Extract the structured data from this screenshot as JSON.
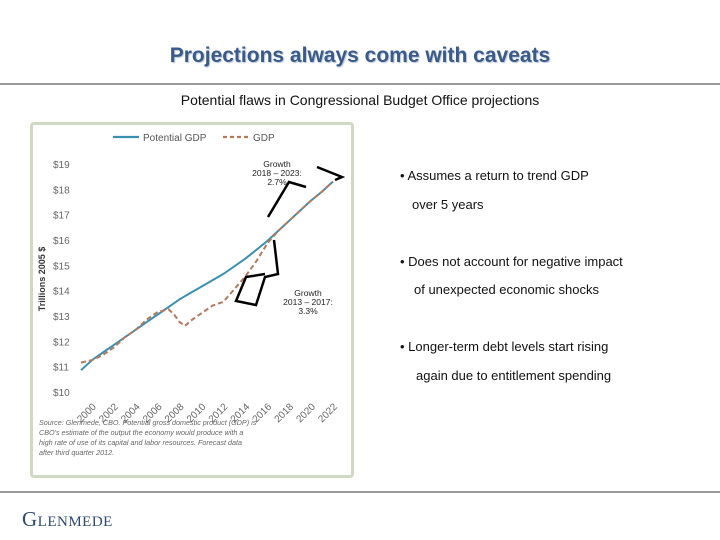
{
  "slide": {
    "title": "Projections always come with caveats",
    "subtitle": "Potential flaws in Congressional Budget Office projections"
  },
  "bullets": [
    {
      "line1": "• Assumes a return to trend GDP",
      "line2": "over 5 years"
    },
    {
      "line1": "• Does not account for negative impact",
      "line2": "of unexpected economic shocks"
    },
    {
      "line1": "• Longer-term debt levels start rising",
      "line2": "again due to entitlement spending"
    }
  ],
  "footer": {
    "logo": "Glenmede"
  },
  "chart_data": {
    "type": "line",
    "ylabel": "Trillions 2005 $",
    "xlabel": "",
    "ylim": [
      10,
      19
    ],
    "xlim": [
      2000,
      2023
    ],
    "x_ticks": [
      "2000",
      "2002",
      "2004",
      "2006",
      "2008",
      "2010",
      "2012",
      "2014",
      "2016",
      "2018",
      "2020",
      "2022"
    ],
    "y_ticks": [
      "$10",
      "$11",
      "$12",
      "$13",
      "$14",
      "$15",
      "$16",
      "$17",
      "$18",
      "$19"
    ],
    "series": [
      {
        "name": "Potential GDP",
        "color": "#3b8fb0",
        "style": "solid",
        "x": [
          2000,
          2001,
          2002,
          2003,
          2004,
          2005,
          2006,
          2007,
          2008,
          2009,
          2010,
          2011,
          2012,
          2013,
          2014,
          2015,
          2016,
          2017,
          2018,
          2019,
          2020,
          2021,
          2022,
          2023
        ],
        "values": [
          10.9,
          11.3,
          11.6,
          11.9,
          12.2,
          12.5,
          12.8,
          13.1,
          13.4,
          13.7,
          13.95,
          14.2,
          14.45,
          14.7,
          15.0,
          15.3,
          15.65,
          16.0,
          16.4,
          16.8,
          17.2,
          17.6,
          17.95,
          18.35
        ]
      },
      {
        "name": "GDP",
        "color": "#b5785a",
        "style": "dashed",
        "x": [
          2000,
          2001,
          2002,
          2003,
          2004,
          2005,
          2006,
          2007,
          2008,
          2008.5,
          2009,
          2009.5,
          2010,
          2011,
          2012,
          2013,
          2014,
          2015,
          2016,
          2017,
          2018,
          2019,
          2020,
          2021,
          2022,
          2023
        ],
        "values": [
          11.2,
          11.3,
          11.5,
          11.8,
          12.2,
          12.5,
          12.9,
          13.2,
          13.3,
          13.1,
          12.8,
          12.65,
          12.85,
          13.15,
          13.45,
          13.6,
          14.1,
          14.6,
          15.2,
          15.9,
          16.4,
          16.8,
          17.2,
          17.6,
          17.95,
          18.35
        ]
      }
    ],
    "annotations": [
      {
        "text": [
          "Growth",
          "2018 – 2023:",
          "2.7%"
        ]
      },
      {
        "text": [
          "Growth",
          "2013 – 2017:",
          "3.3%"
        ]
      }
    ],
    "source_note": [
      "Source: Glenmede, CBO. Potential gross domestic product (GDP) is",
      "CBO's estimate of the output the economy would produce with a",
      "high rate of use of its capital and labor resources. Forecast data",
      "after third quarter 2012."
    ]
  }
}
